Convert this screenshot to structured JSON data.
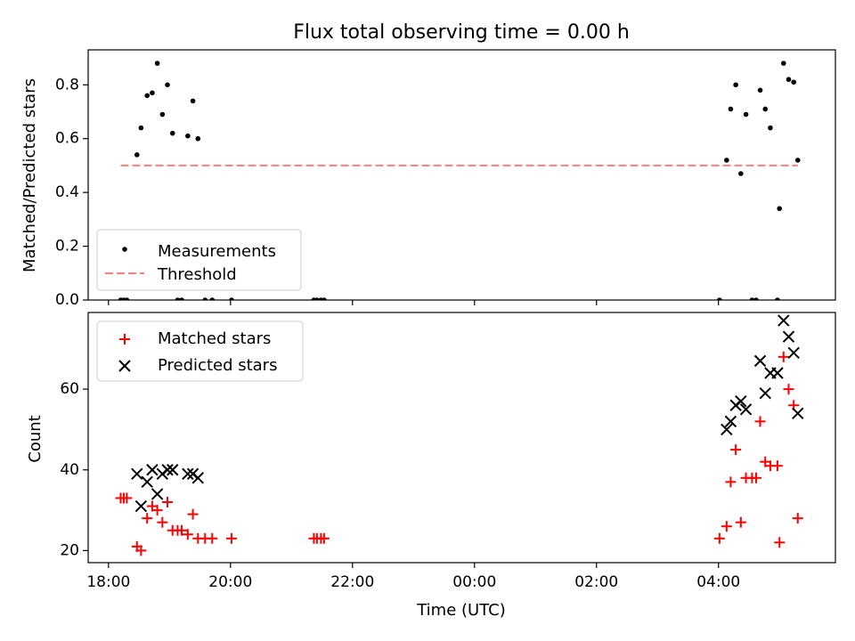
{
  "chart_data": [
    {
      "type": "scatter",
      "title": "Flux total observing time = 0.00 h",
      "xlabel": "",
      "ylabel": "Matched/Predicted stars",
      "xlim": [
        "17:40",
        "05:55"
      ],
      "ylim": [
        0,
        0.93
      ],
      "yticks": [
        0.0,
        0.2,
        0.4,
        0.6,
        0.8
      ],
      "ytick_labels": [
        "0.0",
        "0.2",
        "0.4",
        "0.6",
        "0.8"
      ],
      "xticks": [
        "18:00",
        "20:00",
        "22:00",
        "00:00",
        "02:00",
        "04:00"
      ],
      "legend": "lower-left",
      "grid": false,
      "series": [
        {
          "name": "Measurements",
          "marker": "dot",
          "color": "#000000",
          "points": [
            [
              "18:12",
              0.0
            ],
            [
              "18:15",
              0.0
            ],
            [
              "18:18",
              0.0
            ],
            [
              "18:28",
              0.54
            ],
            [
              "18:32",
              0.64
            ],
            [
              "18:38",
              0.76
            ],
            [
              "18:43",
              0.77
            ],
            [
              "18:48",
              0.88
            ],
            [
              "18:53",
              0.69
            ],
            [
              "18:58",
              0.8
            ],
            [
              "19:03",
              0.62
            ],
            [
              "19:08",
              0.0
            ],
            [
              "19:12",
              0.0
            ],
            [
              "19:18",
              0.61
            ],
            [
              "19:23",
              0.74
            ],
            [
              "19:28",
              0.6
            ],
            [
              "19:35",
              0.0
            ],
            [
              "19:42",
              0.0
            ],
            [
              "20:01",
              0.0
            ],
            [
              "21:22",
              0.0
            ],
            [
              "21:25",
              0.0
            ],
            [
              "21:29",
              0.0
            ],
            [
              "21:32",
              0.0
            ],
            [
              "04:01",
              0.0
            ],
            [
              "04:08",
              0.52
            ],
            [
              "04:12",
              0.71
            ],
            [
              "04:17",
              0.8
            ],
            [
              "04:22",
              0.47
            ],
            [
              "04:27",
              0.69
            ],
            [
              "04:33",
              0.0
            ],
            [
              "04:37",
              0.0
            ],
            [
              "04:41",
              0.78
            ],
            [
              "04:46",
              0.71
            ],
            [
              "04:51",
              0.64
            ],
            [
              "04:58",
              0.0
            ],
            [
              "05:00",
              0.34
            ],
            [
              "05:04",
              0.88
            ],
            [
              "05:09",
              0.82
            ],
            [
              "05:14",
              0.81
            ],
            [
              "05:18",
              0.52
            ]
          ]
        },
        {
          "name": "Threshold",
          "style": "dashed",
          "color": "#ff7f7f",
          "points": [
            [
              "18:12",
              0.5
            ],
            [
              "05:18",
              0.5
            ]
          ]
        }
      ]
    },
    {
      "type": "scatter",
      "title": "",
      "xlabel": "Time (UTC)",
      "ylabel": "Count",
      "xlim": [
        "17:40",
        "05:55"
      ],
      "ylim": [
        17,
        79
      ],
      "yticks": [
        20,
        40,
        60
      ],
      "ytick_labels": [
        "20",
        "40",
        "60"
      ],
      "xticks": [
        "18:00",
        "20:00",
        "22:00",
        "00:00",
        "02:00",
        "04:00"
      ],
      "xtick_labels": [
        "18:00",
        "20:00",
        "22:00",
        "00:00",
        "02:00",
        "04:00"
      ],
      "legend": "top-left",
      "grid": false,
      "series": [
        {
          "name": "Matched stars",
          "marker": "plus",
          "color": "#ff0000",
          "points": [
            [
              "18:12",
              33
            ],
            [
              "18:15",
              33
            ],
            [
              "18:18",
              33
            ],
            [
              "18:28",
              21
            ],
            [
              "18:32",
              20
            ],
            [
              "18:38",
              28
            ],
            [
              "18:43",
              31
            ],
            [
              "18:48",
              30
            ],
            [
              "18:53",
              27
            ],
            [
              "18:58",
              32
            ],
            [
              "19:03",
              25
            ],
            [
              "19:08",
              25
            ],
            [
              "19:12",
              25
            ],
            [
              "19:18",
              24
            ],
            [
              "19:23",
              29
            ],
            [
              "19:28",
              23
            ],
            [
              "19:35",
              23
            ],
            [
              "19:42",
              23
            ],
            [
              "20:01",
              23
            ],
            [
              "21:22",
              23
            ],
            [
              "21:25",
              23
            ],
            [
              "21:29",
              23
            ],
            [
              "21:32",
              23
            ],
            [
              "04:01",
              23
            ],
            [
              "04:08",
              26
            ],
            [
              "04:12",
              37
            ],
            [
              "04:17",
              45
            ],
            [
              "04:22",
              27
            ],
            [
              "04:27",
              38
            ],
            [
              "04:33",
              38
            ],
            [
              "04:37",
              38
            ],
            [
              "04:41",
              52
            ],
            [
              "04:46",
              42
            ],
            [
              "04:51",
              41
            ],
            [
              "04:58",
              41
            ],
            [
              "05:00",
              22
            ],
            [
              "05:04",
              68
            ],
            [
              "05:09",
              60
            ],
            [
              "05:14",
              56
            ],
            [
              "05:18",
              28
            ]
          ]
        },
        {
          "name": "Predicted stars",
          "marker": "x",
          "color": "#000000",
          "points": [
            [
              "18:28",
              39
            ],
            [
              "18:32",
              31
            ],
            [
              "18:38",
              37
            ],
            [
              "18:43",
              40
            ],
            [
              "18:48",
              34
            ],
            [
              "18:53",
              39
            ],
            [
              "18:58",
              40
            ],
            [
              "19:03",
              40
            ],
            [
              "19:18",
              39
            ],
            [
              "19:23",
              39
            ],
            [
              "19:28",
              38
            ],
            [
              "04:08",
              50
            ],
            [
              "04:12",
              52
            ],
            [
              "04:17",
              56
            ],
            [
              "04:22",
              57
            ],
            [
              "04:27",
              55
            ],
            [
              "04:41",
              67
            ],
            [
              "04:46",
              59
            ],
            [
              "04:51",
              64
            ],
            [
              "04:58",
              64
            ],
            [
              "05:04",
              77
            ],
            [
              "05:09",
              73
            ],
            [
              "05:14",
              69
            ],
            [
              "05:18",
              54
            ]
          ]
        }
      ]
    }
  ]
}
